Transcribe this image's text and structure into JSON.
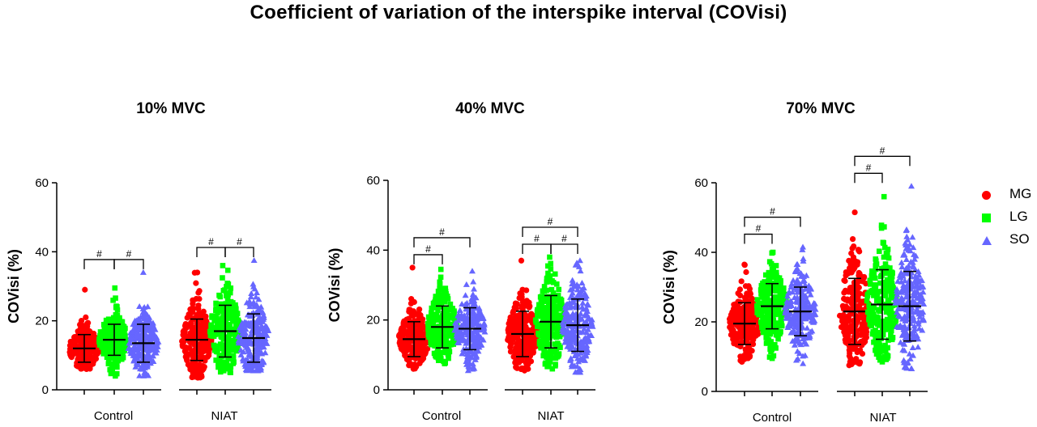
{
  "title": "Coefficient of variation of the interspike interval (COVisi)",
  "legend": [
    {
      "name": "MG",
      "color": "#ff0000",
      "marker": "circle"
    },
    {
      "name": "LG",
      "color": "#00ff00",
      "marker": "square"
    },
    {
      "name": "SO",
      "color": "#6666ff",
      "marker": "triangle"
    }
  ],
  "chart_data": [
    {
      "type": "scatter",
      "title": "10% MVC",
      "ylabel": "COVisi (%)",
      "ylim": [
        0,
        60
      ],
      "yticks": [
        0,
        20,
        40,
        60
      ],
      "categories": [
        "Control",
        "NIAT"
      ],
      "series": [
        {
          "name": "MG",
          "mean": [
            12,
            14.5
          ],
          "sd": [
            4,
            6
          ],
          "min": [
            6,
            3.5
          ],
          "max": [
            29,
            34
          ]
        },
        {
          "name": "LG",
          "mean": [
            14.5,
            17
          ],
          "sd": [
            4.5,
            7.5
          ],
          "min": [
            4,
            5
          ],
          "max": [
            29.5,
            36
          ]
        },
        {
          "name": "SO",
          "mean": [
            13.5,
            15
          ],
          "sd": [
            5.5,
            7
          ],
          "min": [
            4,
            5.5
          ],
          "max": [
            34,
            37.5
          ]
        }
      ],
      "annotations": [
        {
          "text": "#",
          "group": "Control",
          "from": "MG",
          "to": "LG"
        },
        {
          "text": "#",
          "group": "Control",
          "from": "LG",
          "to": "SO"
        },
        {
          "text": "#",
          "group": "NIAT",
          "from": "MG",
          "to": "LG"
        },
        {
          "text": "#",
          "group": "NIAT",
          "from": "LG",
          "to": "SO"
        }
      ]
    },
    {
      "type": "scatter",
      "title": "40% MVC",
      "ylabel": "COVisi (%)",
      "ylim": [
        0,
        60
      ],
      "yticks": [
        0,
        20,
        40,
        60
      ],
      "categories": [
        "Control",
        "NIAT"
      ],
      "series": [
        {
          "name": "MG",
          "mean": [
            14.5,
            16
          ],
          "sd": [
            5,
            6.5
          ],
          "min": [
            6,
            5.5
          ],
          "max": [
            35,
            37
          ]
        },
        {
          "name": "LG",
          "mean": [
            18,
            19.5
          ],
          "sd": [
            6,
            7.5
          ],
          "min": [
            7.5,
            6
          ],
          "max": [
            34.5,
            38
          ]
        },
        {
          "name": "SO",
          "mean": [
            17.5,
            18.5
          ],
          "sd": [
            6,
            7.5
          ],
          "min": [
            5.5,
            5
          ],
          "max": [
            34,
            37
          ]
        }
      ],
      "annotations": [
        {
          "text": "#",
          "group": "Control",
          "from": "MG",
          "to": "LG"
        },
        {
          "text": "#",
          "group": "Control",
          "from": "MG",
          "to": "SO"
        },
        {
          "text": "#",
          "group": "NIAT",
          "from": "MG",
          "to": "LG"
        },
        {
          "text": "#",
          "group": "NIAT",
          "from": "LG",
          "to": "SO"
        },
        {
          "text": "#",
          "group": "NIAT",
          "from": "MG",
          "to": "SO"
        }
      ]
    },
    {
      "type": "scatter",
      "title": "70% MVC",
      "ylabel": "COVisi (%)",
      "ylim": [
        0,
        60
      ],
      "yticks": [
        0,
        20,
        40,
        60
      ],
      "categories": [
        "Control",
        "NIAT"
      ],
      "series": [
        {
          "name": "MG",
          "mean": [
            19.5,
            23
          ],
          "sd": [
            6,
            9.5
          ],
          "min": [
            8.5,
            7.5
          ],
          "max": [
            36.5,
            51.5
          ]
        },
        {
          "name": "LG",
          "mean": [
            24.5,
            25
          ],
          "sd": [
            6.5,
            10
          ],
          "min": [
            9.5,
            8.5
          ],
          "max": [
            40,
            56
          ]
        },
        {
          "name": "SO",
          "mean": [
            23,
            24.5
          ],
          "sd": [
            7,
            10
          ],
          "min": [
            8,
            6.5
          ],
          "max": [
            41.5,
            59
          ]
        }
      ],
      "annotations": [
        {
          "text": "#",
          "group": "Control",
          "from": "MG",
          "to": "LG"
        },
        {
          "text": "#",
          "group": "Control",
          "from": "MG",
          "to": "SO"
        },
        {
          "text": "#",
          "group": "NIAT",
          "from": "MG",
          "to": "LG"
        },
        {
          "text": "#",
          "group": "NIAT",
          "from": "MG",
          "to": "SO"
        }
      ]
    }
  ]
}
